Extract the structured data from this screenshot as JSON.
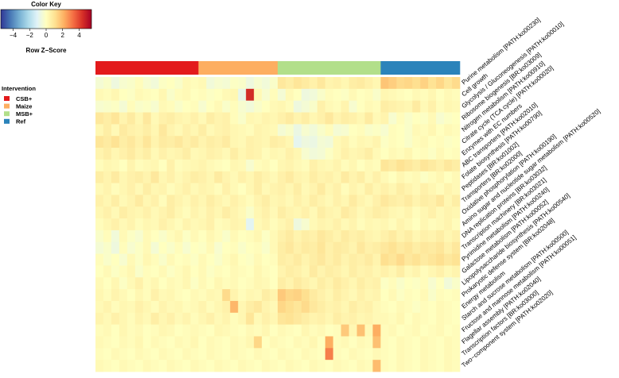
{
  "chart_data": {
    "type": "heatmap",
    "color_key": {
      "title": "Color Key",
      "xlabel": "Row Z−Score",
      "range": [
        -5.5,
        5.5
      ],
      "ticks": [
        -4,
        -2,
        0,
        2,
        4
      ],
      "tick_labels": [
        "−4",
        "−2",
        "0",
        "2",
        "4"
      ],
      "stops": [
        "#313695",
        "#4575b4",
        "#74add1",
        "#abd9e9",
        "#e0f3f8",
        "#ffffbf",
        "#fee090",
        "#fdae61",
        "#f46d43",
        "#d73027",
        "#a50026"
      ]
    },
    "legend": {
      "title": "Intervention",
      "items": [
        {
          "label": "CSB+",
          "color": "#e31a1c"
        },
        {
          "label": "Maize",
          "color": "#fdae61"
        },
        {
          "label": "MSB+",
          "color": "#b2df8a"
        },
        {
          "label": "Ref",
          "color": "#2b83ba"
        }
      ]
    },
    "groups": [
      {
        "name": "CSB+",
        "n": 13
      },
      {
        "name": "Maize",
        "n": 10
      },
      {
        "name": "MSB+",
        "n": 13
      },
      {
        "name": "Ref",
        "n": 10
      }
    ],
    "rows": [
      "Purine metabolism [PATH:ko00230]",
      "Cell growth",
      "Glycolysis / Gluconeogenesis [PATH:ko00010]",
      "Ribosome biogenesis [BR:ko03009]",
      "Nitrogen metabolism [PATH:ko00910]",
      "Citrate cycle (TCA cycle) [PATH:ko00020]",
      "Enzymes with EC numbers",
      "ABC transporters [PATH:ko02010]",
      "Folate biosynthesis [PATH:ko00790]",
      "Peptidases [BR:ko01002]",
      "Transporters [BR:ko02000]",
      "Oxidative phosphorylation [PATH:ko00190]",
      "Amino sugar and nucleotide sugar metabolism [PATH:ko00520]",
      "DNA replication proteins [BR:ko03032]",
      "Transcription machinery [BR:ko03021]",
      "Pyrimidine metabolism [PATH:ko00240]",
      "Galactose metabolism [PATH:ko00052]",
      "Lipopolysaccharide biosynthesis [PATH:ko00540]",
      "Prokaryotic defense system [BR:ko02048]",
      "Energy metabolism",
      "Starch and sucrose metabolism [PATH:ko00500]",
      "Fructose and mannose metabolism [PATH:ko00051]",
      "Flagellar assembly [PATH:ko02040]",
      "Transcription factors [BR:ko03000]",
      "Two−component system [PATH:ko02020]"
    ],
    "matrix": [
      [
        -0.4,
        -0.2,
        -0.6,
        -0.3,
        -0.2,
        0.1,
        -0.3,
        -0.5,
        -0.1,
        0.0,
        -0.2,
        0.2,
        0.1,
        0.2,
        -0.5,
        -0.3,
        -0.4,
        -0.1,
        -0.2,
        -0.6,
        -0.3,
        -0.5,
        -0.2,
        0.8,
        0.6,
        0.9,
        0.7,
        0.5,
        0.8,
        0.4,
        0.5,
        0.3,
        0.6,
        0.7,
        0.5,
        0.3,
        1.7,
        1.5,
        1.2,
        1.3,
        1.1,
        1.4,
        1.0,
        1.3,
        0.9,
        1.2
      ],
      [
        0.2,
        0.1,
        0.3,
        0.0,
        -0.1,
        0.2,
        0.1,
        0.0,
        0.3,
        -0.2,
        0.1,
        0.2,
        0.0,
        0.1,
        -0.1,
        0.0,
        0.2,
        0.3,
        -0.8,
        4.5,
        0.2,
        -0.3,
        0.1,
        -0.4,
        0.2,
        0.0,
        -0.6,
        -0.5,
        -0.2,
        0.1,
        0.0,
        -0.1,
        0.2,
        0.0,
        0.1,
        -0.2,
        0.3,
        0.2,
        0.1,
        0.0,
        0.2,
        0.1,
        0.3,
        0.0,
        0.2,
        0.1
      ],
      [
        -0.3,
        -0.2,
        -0.1,
        -0.4,
        0.1,
        -0.2,
        -0.1,
        -0.3,
        0.2,
        0.1,
        -0.2,
        0.0,
        0.1,
        -0.3,
        0.0,
        0.2,
        -0.2,
        0.1,
        -0.3,
        -0.5,
        -0.2,
        0.0,
        0.2,
        0.3,
        0.1,
        -0.6,
        -0.4,
        -0.2,
        0.5,
        0.2,
        0.1,
        0.4,
        -0.3,
        0.0,
        0.2,
        0.1,
        0.6,
        0.5,
        0.4,
        0.3,
        0.7,
        0.2,
        0.5,
        0.1,
        0.3,
        0.2
      ],
      [
        0.8,
        0.6,
        0.9,
        0.4,
        0.7,
        0.3,
        0.8,
        0.2,
        0.5,
        0.6,
        0.4,
        0.3,
        0.5,
        0.2,
        0.6,
        0.4,
        0.5,
        0.1,
        -0.2,
        0.3,
        0.2,
        0.4,
        0.3,
        0.5,
        0.7,
        0.4,
        0.6,
        0.3,
        0.5,
        0.8,
        0.4,
        0.6,
        0.5,
        0.3,
        0.7,
        0.2,
        0.4,
        -0.3,
        0.1,
        -0.2,
        0.0,
        -0.1,
        0.2,
        -0.3,
        -0.1,
        0.0
      ],
      [
        0.3,
        0.6,
        0.2,
        0.7,
        0.5,
        0.4,
        0.6,
        0.3,
        0.8,
        0.4,
        0.2,
        0.5,
        0.3,
        0.6,
        0.2,
        0.4,
        0.5,
        0.3,
        0.2,
        0.1,
        0.4,
        0.3,
        0.2,
        -0.4,
        -0.2,
        -0.7,
        -0.3,
        -0.5,
        -0.2,
        0.1,
        -0.4,
        -0.3,
        0.0,
        0.1,
        -0.2,
        -0.1,
        -0.3,
        0.1,
        0.0,
        -0.2,
        0.2,
        0.1,
        0.3,
        0.0,
        0.2,
        0.1
      ],
      [
        0.9,
        0.7,
        1.0,
        0.6,
        0.8,
        0.5,
        0.9,
        0.4,
        0.7,
        0.6,
        0.8,
        0.5,
        0.7,
        0.4,
        0.6,
        0.5,
        0.7,
        0.3,
        0.2,
        0.5,
        0.4,
        0.3,
        0.6,
        0.5,
        0.3,
        -0.9,
        -0.6,
        -0.7,
        -0.4,
        -0.5,
        0.2,
        0.4,
        0.1,
        0.3,
        0.2,
        0.4,
        -0.1,
        0.1,
        0.0,
        -0.2,
        0.1,
        0.2,
        0.0,
        0.1,
        -0.1,
        0.0
      ],
      [
        0.4,
        0.6,
        0.3,
        0.5,
        0.7,
        0.4,
        0.6,
        0.2,
        0.5,
        0.3,
        0.4,
        0.6,
        0.2,
        0.3,
        0.5,
        0.4,
        0.2,
        0.6,
        0.3,
        0.5,
        0.4,
        0.1,
        0.3,
        0.2,
        0.5,
        0.3,
        -0.3,
        -0.5,
        -0.4,
        -0.1,
        0.2,
        0.5,
        0.3,
        0.4,
        0.6,
        0.2,
        0.0,
        0.2,
        0.1,
        0.3,
        0.0,
        0.1,
        -0.1,
        0.2,
        0.0,
        0.1
      ],
      [
        0.1,
        0.3,
        0.2,
        0.0,
        0.4,
        0.1,
        0.2,
        0.3,
        0.0,
        0.5,
        0.1,
        0.2,
        0.3,
        0.4,
        0.2,
        0.1,
        0.0,
        0.3,
        0.2,
        -0.3,
        0.1,
        0.2,
        0.0,
        0.3,
        0.4,
        0.2,
        0.1,
        0.5,
        0.3,
        0.2,
        0.4,
        0.1,
        0.3,
        0.0,
        0.2,
        0.1,
        0.9,
        0.7,
        1.0,
        0.8,
        0.6,
        0.9,
        0.7,
        0.5,
        0.8,
        0.6
      ],
      [
        0.6,
        0.4,
        0.7,
        0.3,
        0.5,
        0.6,
        0.4,
        0.8,
        0.3,
        0.5,
        0.2,
        0.4,
        0.6,
        0.5,
        0.3,
        0.7,
        0.4,
        0.2,
        0.5,
        0.3,
        0.6,
        0.4,
        0.2,
        0.5,
        0.7,
        0.4,
        0.3,
        0.6,
        0.4,
        0.5,
        0.3,
        0.7,
        0.4,
        0.6,
        0.2,
        0.5,
        0.2,
        0.0,
        0.3,
        0.1,
        0.2,
        -0.1,
        0.1,
        0.3,
        0.0,
        0.2
      ],
      [
        0.2,
        0.4,
        0.1,
        0.3,
        0.5,
        0.2,
        0.6,
        0.3,
        0.4,
        0.1,
        0.3,
        0.5,
        0.2,
        0.4,
        0.3,
        0.1,
        0.5,
        0.2,
        0.0,
        0.3,
        0.6,
        0.2,
        0.4,
        0.5,
        0.3,
        0.6,
        0.2,
        0.4,
        0.7,
        0.3,
        0.5,
        0.1,
        0.4,
        0.2,
        0.6,
        0.3,
        0.5,
        0.3,
        0.6,
        0.4,
        0.2,
        0.5,
        0.3,
        0.1,
        0.4,
        0.2
      ],
      [
        0.5,
        0.3,
        0.6,
        0.2,
        0.4,
        0.7,
        0.3,
        0.5,
        0.1,
        0.6,
        0.4,
        0.2,
        0.5,
        0.3,
        0.6,
        0.4,
        0.2,
        0.5,
        0.3,
        0.1,
        0.4,
        0.6,
        0.3,
        0.4,
        0.2,
        0.5,
        0.3,
        0.6,
        0.4,
        0.2,
        0.5,
        0.3,
        0.7,
        0.4,
        0.2,
        0.5,
        0.8,
        0.6,
        0.5,
        0.7,
        0.4,
        0.6,
        0.5,
        0.8,
        0.3,
        0.6
      ],
      [
        0.3,
        0.5,
        0.2,
        0.6,
        0.4,
        0.3,
        0.5,
        0.2,
        0.4,
        0.6,
        0.3,
        0.1,
        0.4,
        0.2,
        0.5,
        0.3,
        0.6,
        0.4,
        0.2,
        -0.2,
        0.3,
        0.5,
        0.2,
        0.6,
        0.4,
        0.3,
        0.5,
        0.2,
        0.6,
        0.4,
        0.3,
        0.7,
        0.5,
        0.2,
        0.4,
        0.6,
        0.5,
        0.3,
        0.2,
        0.4,
        0.1,
        0.3,
        0.5,
        0.2,
        0.4,
        0.3
      ],
      [
        0.1,
        0.3,
        0.5,
        0.2,
        0.4,
        0.1,
        0.3,
        0.2,
        0.5,
        0.3,
        0.1,
        0.4,
        0.2,
        0.3,
        0.5,
        0.1,
        0.2,
        0.4,
        0.3,
        -1.0,
        0.2,
        0.4,
        0.1,
        0.3,
        0.5,
        -0.6,
        -0.3,
        0.2,
        0.4,
        0.3,
        0.5,
        0.2,
        0.4,
        0.1,
        0.3,
        0.2,
        0.3,
        0.1,
        0.4,
        0.2,
        0.0,
        0.3,
        0.1,
        0.2,
        0.4,
        0.1
      ],
      [
        -0.2,
        0.1,
        -0.5,
        0.2,
        -0.1,
        -0.3,
        0.2,
        0.0,
        -0.2,
        0.1,
        0.3,
        -0.1,
        0.2,
        0.0,
        0.3,
        0.1,
        -0.2,
        0.2,
        0.0,
        0.1,
        0.3,
        -0.1,
        0.2,
        0.5,
        0.7,
        0.4,
        0.6,
        0.5,
        0.8,
        0.6,
        0.4,
        0.7,
        0.5,
        0.6,
        0.4,
        0.3,
        0.5,
        0.7,
        0.4,
        0.6,
        0.3,
        0.5,
        0.4,
        0.6,
        0.3,
        0.5
      ],
      [
        -0.4,
        -0.2,
        -0.6,
        0.1,
        -0.3,
        -0.1,
        0.2,
        -0.4,
        0.0,
        -0.2,
        0.1,
        -0.3,
        0.0,
        -0.1,
        0.2,
        -0.3,
        0.0,
        0.1,
        -0.2,
        0.0,
        0.1,
        -0.2,
        0.2,
        0.6,
        0.8,
        0.5,
        0.7,
        0.6,
        0.9,
        0.5,
        0.7,
        0.6,
        0.4,
        0.8,
        0.5,
        0.6,
        0.8,
        1.0,
        0.7,
        0.9,
        0.6,
        0.8,
        0.7,
        0.9,
        0.5,
        0.8
      ],
      [
        0.1,
        -0.2,
        0.0,
        -0.3,
        0.2,
        -0.1,
        0.3,
        0.1,
        -0.2,
        0.2,
        0.0,
        0.1,
        -0.1,
        0.2,
        0.0,
        -0.2,
        0.1,
        0.3,
        0.0,
        -0.1,
        0.2,
        0.0,
        0.1,
        0.6,
        0.5,
        0.7,
        0.4,
        0.6,
        0.8,
        0.5,
        0.7,
        0.4,
        0.6,
        0.5,
        0.7,
        0.4,
        1.1,
        0.9,
        1.2,
        0.8,
        1.0,
        0.7,
        0.9,
        1.1,
        0.8,
        1.0
      ],
      [
        0.0,
        0.2,
        -0.1,
        0.1,
        0.3,
        -0.2,
        0.1,
        0.0,
        0.2,
        -0.1,
        0.1,
        0.3,
        0.0,
        0.2,
        -0.1,
        0.1,
        0.0,
        0.2,
        0.1,
        0.0,
        0.3,
        0.1,
        0.0,
        0.4,
        0.6,
        0.5,
        0.3,
        0.7,
        0.4,
        0.6,
        0.5,
        0.3,
        0.6,
        0.4,
        0.5,
        0.3,
        0.5,
        0.3,
        0.6,
        0.2,
        0.4,
        0.1,
        0.3,
        0.5,
        0.2,
        0.4
      ],
      [
        0.2,
        0.0,
        0.3,
        -0.1,
        0.2,
        0.5,
        0.1,
        0.3,
        0.0,
        0.2,
        0.1,
        0.3,
        -0.1,
        0.2,
        0.0,
        0.3,
        0.1,
        0.2,
        0.0,
        0.1,
        0.3,
        0.2,
        0.0,
        0.6,
        0.4,
        0.7,
        0.5,
        0.3,
        0.6,
        0.4,
        0.7,
        0.5,
        0.3,
        0.6,
        0.4,
        0.5,
        -0.1,
        0.1,
        -0.2,
        0.0,
        -0.1,
        0.1,
        -0.3,
        0.0,
        -0.5,
        -0.2
      ],
      [
        0.3,
        0.1,
        0.4,
        0.2,
        0.0,
        0.3,
        0.1,
        0.5,
        0.2,
        0.3,
        0.1,
        0.0,
        0.2,
        0.1,
        0.3,
        0.2,
        1.2,
        0.4,
        0.1,
        0.3,
        0.2,
        0.6,
        0.4,
        1.6,
        1.3,
        1.4,
        1.1,
        0.7,
        0.5,
        0.3,
        0.6,
        0.4,
        0.2,
        0.5,
        0.3,
        0.4,
        0.0,
        0.2,
        -0.1,
        0.1,
        0.0,
        0.2,
        -0.2,
        0.1,
        0.0,
        0.1
      ],
      [
        0.2,
        0.4,
        0.1,
        0.3,
        0.2,
        0.5,
        0.3,
        0.1,
        0.4,
        0.2,
        0.3,
        0.1,
        0.2,
        0.4,
        0.1,
        0.3,
        0.5,
        2.0,
        0.3,
        0.6,
        0.8,
        0.4,
        0.2,
        1.3,
        1.1,
        0.9,
        1.2,
        0.8,
        0.6,
        0.4,
        0.5,
        0.3,
        0.6,
        0.4,
        0.5,
        0.2,
        0.1,
        0.0,
        0.2,
        0.1,
        -0.1,
        0.1,
        0.0,
        0.2,
        0.1,
        0.0
      ],
      [
        0.4,
        0.2,
        0.5,
        0.3,
        0.1,
        0.4,
        0.2,
        0.6,
        0.3,
        0.5,
        0.2,
        0.4,
        0.1,
        0.3,
        0.5,
        0.2,
        0.4,
        0.1,
        0.3,
        0.9,
        0.2,
        0.5,
        0.3,
        0.9,
        1.0,
        0.8,
        0.6,
        0.4,
        0.5,
        0.3,
        0.6,
        0.4,
        0.5,
        0.3,
        0.4,
        0.2,
        0.2,
        0.1,
        0.3,
        0.0,
        0.2,
        0.1,
        0.0,
        0.2,
        0.1,
        0.0
      ],
      [
        0.1,
        0.2,
        0.0,
        0.3,
        0.1,
        0.2,
        0.0,
        0.1,
        0.3,
        0.2,
        0.0,
        0.1,
        0.2,
        0.1,
        0.0,
        0.3,
        0.2,
        0.1,
        0.0,
        0.2,
        0.1,
        0.3,
        0.0,
        0.2,
        0.1,
        0.0,
        0.3,
        0.1,
        0.2,
        0.0,
        0.1,
        1.6,
        0.3,
        1.8,
        0.2,
        2.2,
        0.1,
        0.2,
        0.0,
        0.1,
        0.2,
        0.0,
        0.1,
        0.2,
        0.0,
        0.1
      ],
      [
        0.2,
        0.1,
        0.0,
        0.2,
        0.1,
        0.3,
        0.0,
        0.2,
        0.1,
        0.0,
        0.2,
        0.1,
        0.3,
        0.0,
        0.2,
        0.1,
        0.0,
        0.2,
        0.1,
        0.3,
        1.3,
        0.0,
        0.2,
        0.1,
        0.0,
        0.2,
        0.1,
        0.3,
        0.0,
        2.2,
        0.1,
        0.2,
        0.0,
        0.2,
        0.1,
        1.8,
        0.1,
        0.0,
        0.2,
        0.1,
        0.0,
        0.2,
        0.1,
        0.0,
        0.2,
        0.1
      ],
      [
        0.1,
        0.0,
        0.2,
        0.1,
        0.0,
        0.2,
        0.1,
        0.0,
        0.2,
        0.1,
        0.0,
        0.2,
        0.1,
        0.0,
        0.2,
        0.1,
        0.0,
        0.2,
        0.1,
        0.0,
        0.2,
        0.1,
        0.0,
        0.2,
        0.1,
        0.0,
        0.2,
        0.1,
        0.0,
        3.0,
        0.1,
        0.0,
        0.2,
        0.1,
        0.0,
        0.2,
        0.1,
        0.0,
        0.2,
        0.1,
        0.0,
        0.2,
        0.1,
        0.0,
        0.2,
        0.1
      ],
      [
        0.2,
        0.1,
        0.0,
        0.2,
        0.1,
        0.0,
        0.2,
        0.1,
        0.0,
        0.2,
        0.1,
        0.0,
        0.2,
        0.1,
        0.0,
        0.2,
        0.1,
        0.0,
        0.2,
        0.1,
        0.0,
        0.2,
        0.1,
        0.0,
        0.2,
        0.1,
        0.0,
        0.2,
        0.1,
        0.0,
        0.2,
        0.1,
        0.0,
        0.2,
        0.1,
        1.9,
        0.1,
        0.0,
        0.2,
        0.1,
        0.0,
        0.2,
        0.1,
        0.0,
        0.2,
        0.1
      ]
    ]
  }
}
